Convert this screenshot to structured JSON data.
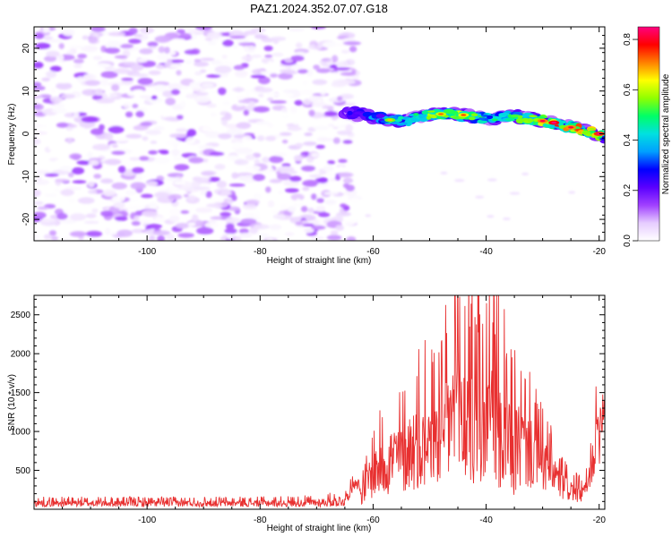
{
  "figure": {
    "title": "PAZ1.2024.352.07.07.G18"
  },
  "chart_data": [
    {
      "id": "spectrogram",
      "type": "heatmap",
      "title": "PAZ1.2024.352.07.07.G18",
      "xlabel": "Height of straight line (km)",
      "ylabel": "Frequency (Hz)",
      "xlim": [
        -120,
        -19
      ],
      "ylim": [
        -25,
        25
      ],
      "x_ticks": [
        -100,
        -80,
        -60,
        -40,
        -20
      ],
      "y_ticks": [
        -20,
        -10,
        0,
        10,
        20
      ],
      "grid": false,
      "colorbar": {
        "label": "Normalized spectral amplitude",
        "range": [
          0,
          0.85
        ],
        "ticks": [
          0.0,
          0.2,
          0.4,
          0.6,
          0.8
        ],
        "colormap": [
          "#ffffff",
          "#e6ccff",
          "#a040ff",
          "#5a00ff",
          "#0000ff",
          "#00a0ff",
          "#00e0e0",
          "#00ff66",
          "#90ff00",
          "#ffff00",
          "#ff8000",
          "#ff0000",
          "#ff0080"
        ]
      },
      "regions": [
        {
          "description": "noise",
          "x_range": [
            -120,
            -65
          ],
          "y_range": [
            -25,
            25
          ],
          "amplitude": [
            0.0,
            0.15
          ]
        }
      ],
      "signal_ridge": {
        "x": [
          -65,
          -60,
          -55,
          -50,
          -45,
          -40,
          -35,
          -30,
          -25,
          -20,
          -19
        ],
        "frequency": [
          5.0,
          4.0,
          3.0,
          4.5,
          4.5,
          3.5,
          4.0,
          3.0,
          1.5,
          0.0,
          -0.5
        ],
        "amplitude": [
          0.25,
          0.35,
          0.45,
          0.55,
          0.6,
          0.45,
          0.5,
          0.65,
          0.75,
          0.75,
          0.6
        ]
      }
    },
    {
      "id": "snr",
      "type": "line",
      "xlabel": "Height of straight line (km)",
      "ylabel": "SNR (10 * v/v)",
      "xlim": [
        -120,
        -19
      ],
      "ylim": [
        0,
        2750
      ],
      "x_ticks": [
        -100,
        -80,
        -60,
        -40,
        -20
      ],
      "y_ticks": [
        500,
        1000,
        1500,
        2000,
        2500
      ],
      "grid": false,
      "series": [
        {
          "color": "#e83030",
          "x": [
            -120,
            -110,
            -100,
            -90,
            -80,
            -70,
            -65,
            -63,
            -62,
            -60,
            -58,
            -55,
            -52,
            -50,
            -48,
            -46,
            -45,
            -44,
            -42,
            -40,
            -38,
            -36,
            -35,
            -33,
            -31,
            -29,
            -27,
            -25,
            -23,
            -22,
            -21,
            -20,
            -19.5,
            -19
          ],
          "baseline": [
            80,
            80,
            80,
            80,
            80,
            85,
            110,
            380,
            200,
            500,
            600,
            700,
            850,
            900,
            1050,
            1200,
            1350,
            1250,
            1100,
            1200,
            1050,
            900,
            850,
            850,
            700,
            550,
            350,
            250,
            200,
            300,
            700,
            1100,
            1300,
            1300
          ],
          "amplitude": [
            60,
            60,
            60,
            60,
            60,
            70,
            100,
            100,
            180,
            450,
            550,
            650,
            750,
            850,
            1000,
            1200,
            1400,
            1300,
            1100,
            1250,
            1100,
            950,
            900,
            750,
            600,
            450,
            300,
            200,
            150,
            200,
            350,
            700,
            400,
            300
          ]
        }
      ]
    }
  ]
}
